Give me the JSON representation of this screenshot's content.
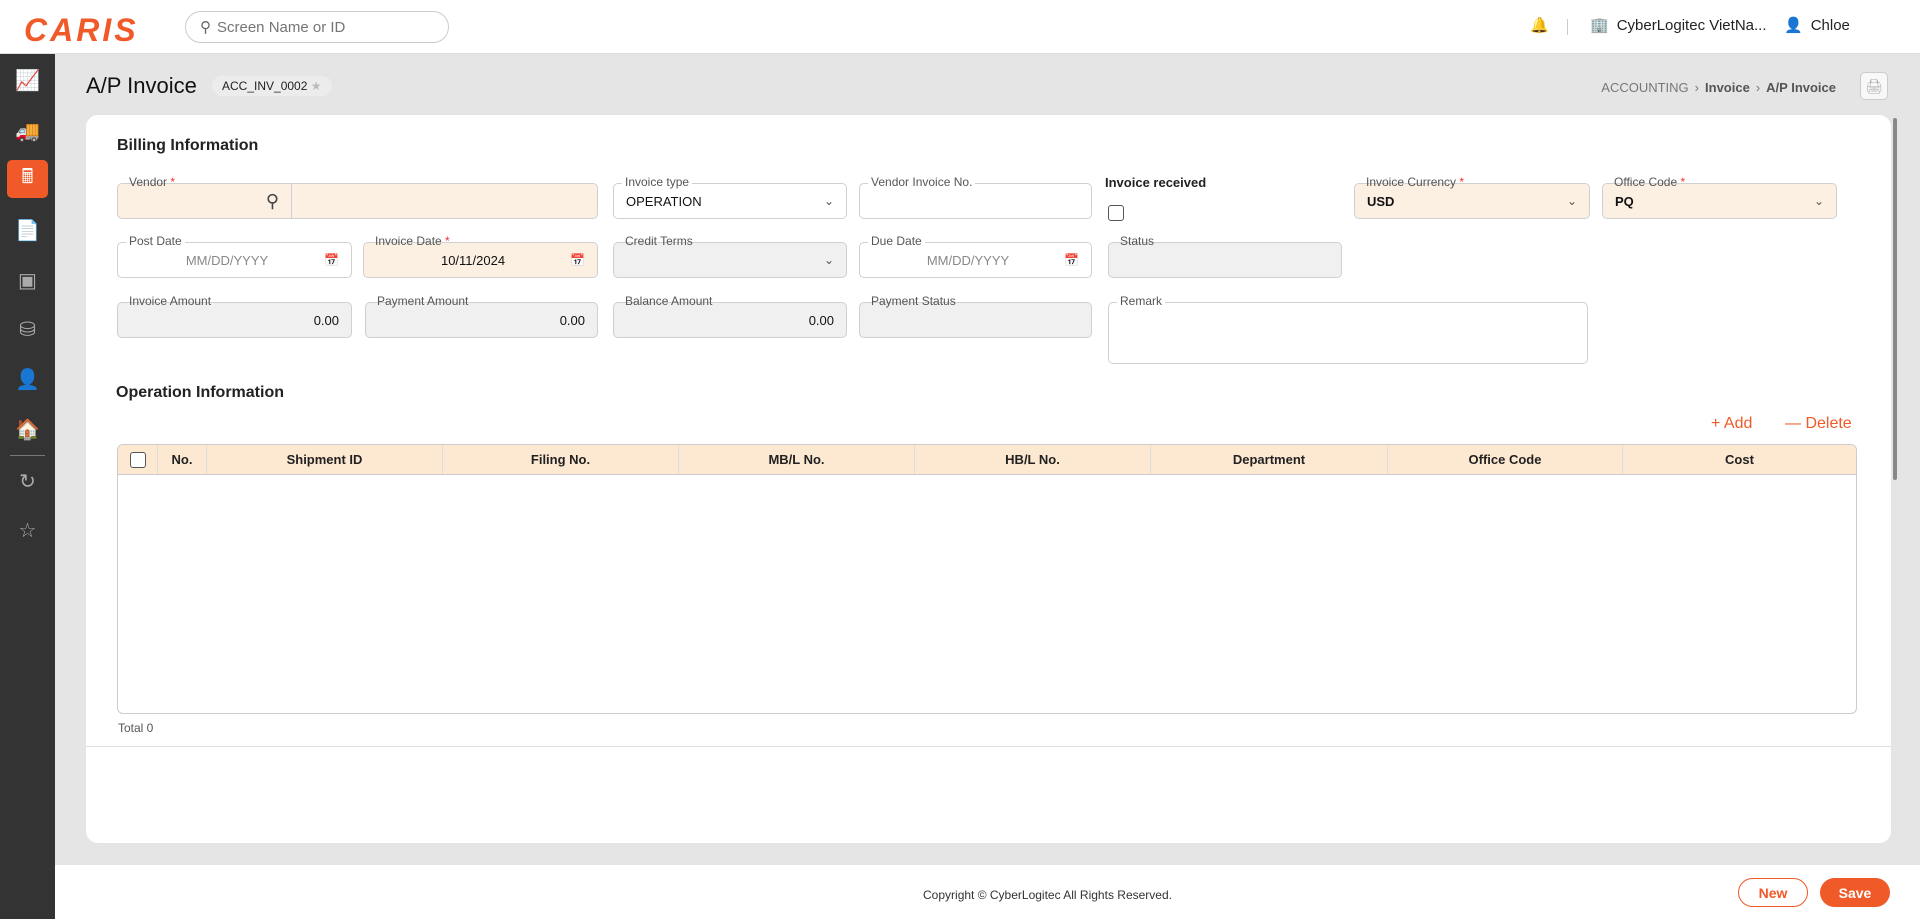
{
  "header": {
    "logo": "CARIS",
    "search_placeholder": "Screen Name or ID",
    "company": "CyberLogitec VietNa...",
    "user": "Chloe"
  },
  "sidebar": {
    "items": [
      {
        "icon": "chart-dollar-icon"
      },
      {
        "icon": "truck-icon"
      },
      {
        "icon": "calculator-dollar-icon",
        "active": true
      },
      {
        "icon": "report-dollar-icon"
      },
      {
        "icon": "boxes-icon"
      },
      {
        "icon": "database-gear-icon"
      },
      {
        "icon": "user-gear-icon"
      },
      {
        "icon": "warehouse-icon"
      },
      {
        "icon": "history-icon"
      },
      {
        "icon": "star-icon"
      }
    ]
  },
  "page": {
    "title": "A/P Invoice",
    "code": "ACC_INV_0002",
    "breadcrumb": [
      "ACCOUNTING",
      "Invoice",
      "A/P Invoice"
    ]
  },
  "billing": {
    "title": "Billing Information",
    "vendor": {
      "label": "Vendor",
      "value": ""
    },
    "invoice_type": {
      "label": "Invoice type",
      "value": "OPERATION"
    },
    "vendor_invoice_no": {
      "label": "Vendor Invoice No.",
      "value": ""
    },
    "invoice_received": {
      "label": "Invoice received",
      "checked": false
    },
    "invoice_currency": {
      "label": "Invoice Currency",
      "value": "USD"
    },
    "office_code": {
      "label": "Office Code",
      "value": "PQ"
    },
    "post_date": {
      "label": "Post Date",
      "placeholder": "MM/DD/YYYY"
    },
    "invoice_date": {
      "label": "Invoice Date",
      "value": "10/11/2024"
    },
    "credit_terms": {
      "label": "Credit Terms",
      "value": ""
    },
    "due_date": {
      "label": "Due Date",
      "placeholder": "MM/DD/YYYY"
    },
    "status": {
      "label": "Status",
      "value": ""
    },
    "invoice_amount": {
      "label": "Invoice Amount",
      "value": "0.00"
    },
    "payment_amount": {
      "label": "Payment Amount",
      "value": "0.00"
    },
    "balance_amount": {
      "label": "Balance Amount",
      "value": "0.00"
    },
    "payment_status": {
      "label": "Payment Status",
      "value": ""
    },
    "remark": {
      "label": "Remark",
      "value": ""
    }
  },
  "operation": {
    "title": "Operation Information",
    "add": "Add",
    "delete": "Delete",
    "columns": [
      "No.",
      "Shipment ID",
      "Filing No.",
      "MB/L No.",
      "HB/L No.",
      "Department",
      "Office Code",
      "Cost"
    ],
    "rows": [],
    "total": "Total 0"
  },
  "footer": {
    "copyright": "Copyright © CyberLogitec All Rights Reserved.",
    "new": "New",
    "save": "Save"
  },
  "colors": {
    "accent": "#f05a28",
    "required_bg": "#fcf0e3",
    "header_bg": "#fde9d2",
    "sidebar": "#333333"
  }
}
